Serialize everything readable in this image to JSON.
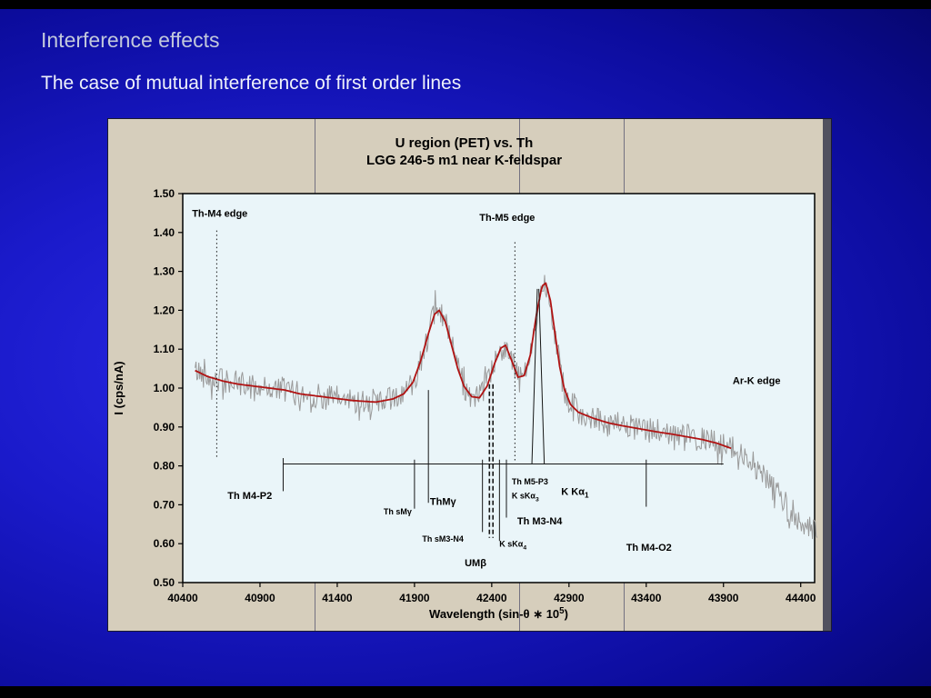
{
  "slide": {
    "title": "Interference effects",
    "subtitle": "The case of mutual interference of first order lines"
  },
  "chart": {
    "title_line1": "U region (PET) vs. Th",
    "title_line2": "LGG 246-5 m1 near K-feldspar"
  },
  "chart_data": {
    "type": "line",
    "title": "U region (PET) vs. Th — LGG 246-5 m1 near K-feldspar",
    "xlabel": "Wavelength (sin-θ ∗ 10^5)",
    "ylabel": "I (cps/nA)",
    "xdomain": [
      40400,
      44490
    ],
    "ydomain": [
      0.5,
      1.5
    ],
    "x_ticks": [
      40400,
      40900,
      41400,
      41900,
      42400,
      42900,
      43400,
      43900,
      44400
    ],
    "y_ticks": [
      1.5,
      1.4,
      1.3,
      1.2,
      1.1,
      1.0,
      0.9,
      0.8,
      0.7,
      0.6,
      0.5
    ],
    "grid": false,
    "legend": "none",
    "colors": {
      "plot_bg": "#eaf5f9",
      "panel_bg": "#d6cebc",
      "axis": "#000000",
      "noisy_trace": "#9a9a9a",
      "smooth_trace": "#b01313",
      "marker": "#161616"
    },
    "anchors": [
      [
        40480,
        1.045
      ],
      [
        40560,
        1.03
      ],
      [
        40660,
        1.018
      ],
      [
        40760,
        1.01
      ],
      [
        40860,
        1.005
      ],
      [
        40960,
        1.0
      ],
      [
        41060,
        0.995
      ],
      [
        41160,
        0.985
      ],
      [
        41260,
        0.98
      ],
      [
        41360,
        0.975
      ],
      [
        41500,
        0.968
      ],
      [
        41650,
        0.964
      ],
      [
        41760,
        0.972
      ],
      [
        41830,
        0.985
      ],
      [
        41890,
        1.015
      ],
      [
        41940,
        1.07
      ],
      [
        41990,
        1.14
      ],
      [
        42030,
        1.19
      ],
      [
        42060,
        1.2
      ],
      [
        42100,
        1.17
      ],
      [
        42140,
        1.11
      ],
      [
        42180,
        1.05
      ],
      [
        42220,
        1.005
      ],
      [
        42270,
        0.978
      ],
      [
        42320,
        0.975
      ],
      [
        42370,
        1.005
      ],
      [
        42420,
        1.065
      ],
      [
        42460,
        1.103
      ],
      [
        42490,
        1.11
      ],
      [
        42530,
        1.07
      ],
      [
        42570,
        1.028
      ],
      [
        42610,
        1.032
      ],
      [
        42650,
        1.085
      ],
      [
        42690,
        1.19
      ],
      [
        42725,
        1.262
      ],
      [
        42750,
        1.27
      ],
      [
        42780,
        1.225
      ],
      [
        42810,
        1.14
      ],
      [
        42840,
        1.055
      ],
      [
        42870,
        0.998
      ],
      [
        42910,
        0.958
      ],
      [
        42960,
        0.938
      ],
      [
        43060,
        0.922
      ],
      [
        43160,
        0.91
      ],
      [
        43260,
        0.902
      ],
      [
        43360,
        0.895
      ],
      [
        43460,
        0.888
      ],
      [
        43560,
        0.882
      ],
      [
        43660,
        0.875
      ],
      [
        43760,
        0.868
      ],
      [
        43860,
        0.858
      ],
      [
        43950,
        0.845
      ],
      [
        44010,
        0.832
      ],
      [
        44070,
        0.812
      ],
      [
        44130,
        0.786
      ],
      [
        44190,
        0.758
      ],
      [
        44250,
        0.73
      ],
      [
        44310,
        0.7
      ],
      [
        44370,
        0.672
      ],
      [
        44430,
        0.648
      ],
      [
        44480,
        0.632
      ],
      [
        44510,
        0.624
      ]
    ],
    "series": [
      {
        "name": "measured spectrum (noisy)",
        "color": "#9a9a9a",
        "range": [
          40480,
          44510
        ],
        "noise": 0.034
      },
      {
        "name": "smoothed spectrum",
        "color": "#b01313",
        "range": [
          40480,
          43950
        ],
        "noise": 0
      }
    ],
    "marker_lines": [
      {
        "x1": 40620,
        "y1": 1.405,
        "x2": 40620,
        "y2": 0.82,
        "style": "dotted"
      },
      {
        "x1": 42550,
        "y1": 1.375,
        "x2": 42550,
        "y2": 0.81,
        "style": "dotted"
      },
      {
        "x1": 41050,
        "y1": 0.805,
        "x2": 43900,
        "y2": 0.805,
        "style": "solid"
      },
      {
        "x1": 41050,
        "y1": 0.82,
        "x2": 41050,
        "y2": 0.735,
        "style": "solid"
      },
      {
        "x1": 41900,
        "y1": 0.816,
        "x2": 41900,
        "y2": 0.69,
        "style": "solid"
      },
      {
        "x1": 41990,
        "y1": 0.995,
        "x2": 41990,
        "y2": 0.705,
        "style": "solid"
      },
      {
        "x1": 42340,
        "y1": 0.816,
        "x2": 42340,
        "y2": 0.63,
        "style": "solid"
      },
      {
        "x1": 42385,
        "y1": 1.01,
        "x2": 42385,
        "y2": 0.615,
        "style": "dashed"
      },
      {
        "x1": 42408,
        "y1": 1.01,
        "x2": 42408,
        "y2": 0.615,
        "style": "dashed"
      },
      {
        "x1": 42450,
        "y1": 0.816,
        "x2": 42450,
        "y2": 0.607,
        "style": "solid"
      },
      {
        "x1": 42495,
        "y1": 0.816,
        "x2": 42495,
        "y2": 0.667,
        "style": "solid"
      },
      {
        "x1": 42660,
        "y1": 0.805,
        "x2": 42695,
        "y2": 1.255,
        "style": "solid"
      },
      {
        "x1": 42740,
        "y1": 0.805,
        "x2": 42705,
        "y2": 1.255,
        "style": "solid"
      },
      {
        "x1": 43400,
        "y1": 0.816,
        "x2": 43400,
        "y2": 0.695,
        "style": "solid"
      }
    ],
    "annotations": [
      {
        "text": "Th-M4 edge",
        "x": 40460,
        "y": 1.44,
        "size": 11
      },
      {
        "text": "Th-M5 edge",
        "x": 42320,
        "y": 1.43,
        "size": 11
      },
      {
        "text": "Ar-K edge",
        "x": 43960,
        "y": 1.01,
        "size": 11
      },
      {
        "text": "Th M4-P2",
        "x": 40690,
        "y": 0.715,
        "size": 11
      },
      {
        "text": "Th sMγ",
        "x": 41700,
        "y": 0.675,
        "size": 9
      },
      {
        "text": "ThMγ",
        "x": 42000,
        "y": 0.7,
        "size": 11
      },
      {
        "text": "Th sM3-N4",
        "x": 41950,
        "y": 0.605,
        "size": 9
      },
      {
        "text": "UMβ",
        "x": 42225,
        "y": 0.542,
        "size": 11
      },
      {
        "text": "K sKα_4",
        "x": 42450,
        "y": 0.592,
        "size": 9
      },
      {
        "text": "Th M3-N4",
        "x": 42565,
        "y": 0.65,
        "size": 11
      },
      {
        "text": "K sKα_3",
        "x": 42530,
        "y": 0.716,
        "size": 9
      },
      {
        "text": "Th M5-P3",
        "x": 42530,
        "y": 0.752,
        "size": 9
      },
      {
        "text": "K Kα_1",
        "x": 42850,
        "y": 0.725,
        "size": 11
      },
      {
        "text": "Th M4-O2",
        "x": 43270,
        "y": 0.582,
        "size": 11
      }
    ]
  }
}
